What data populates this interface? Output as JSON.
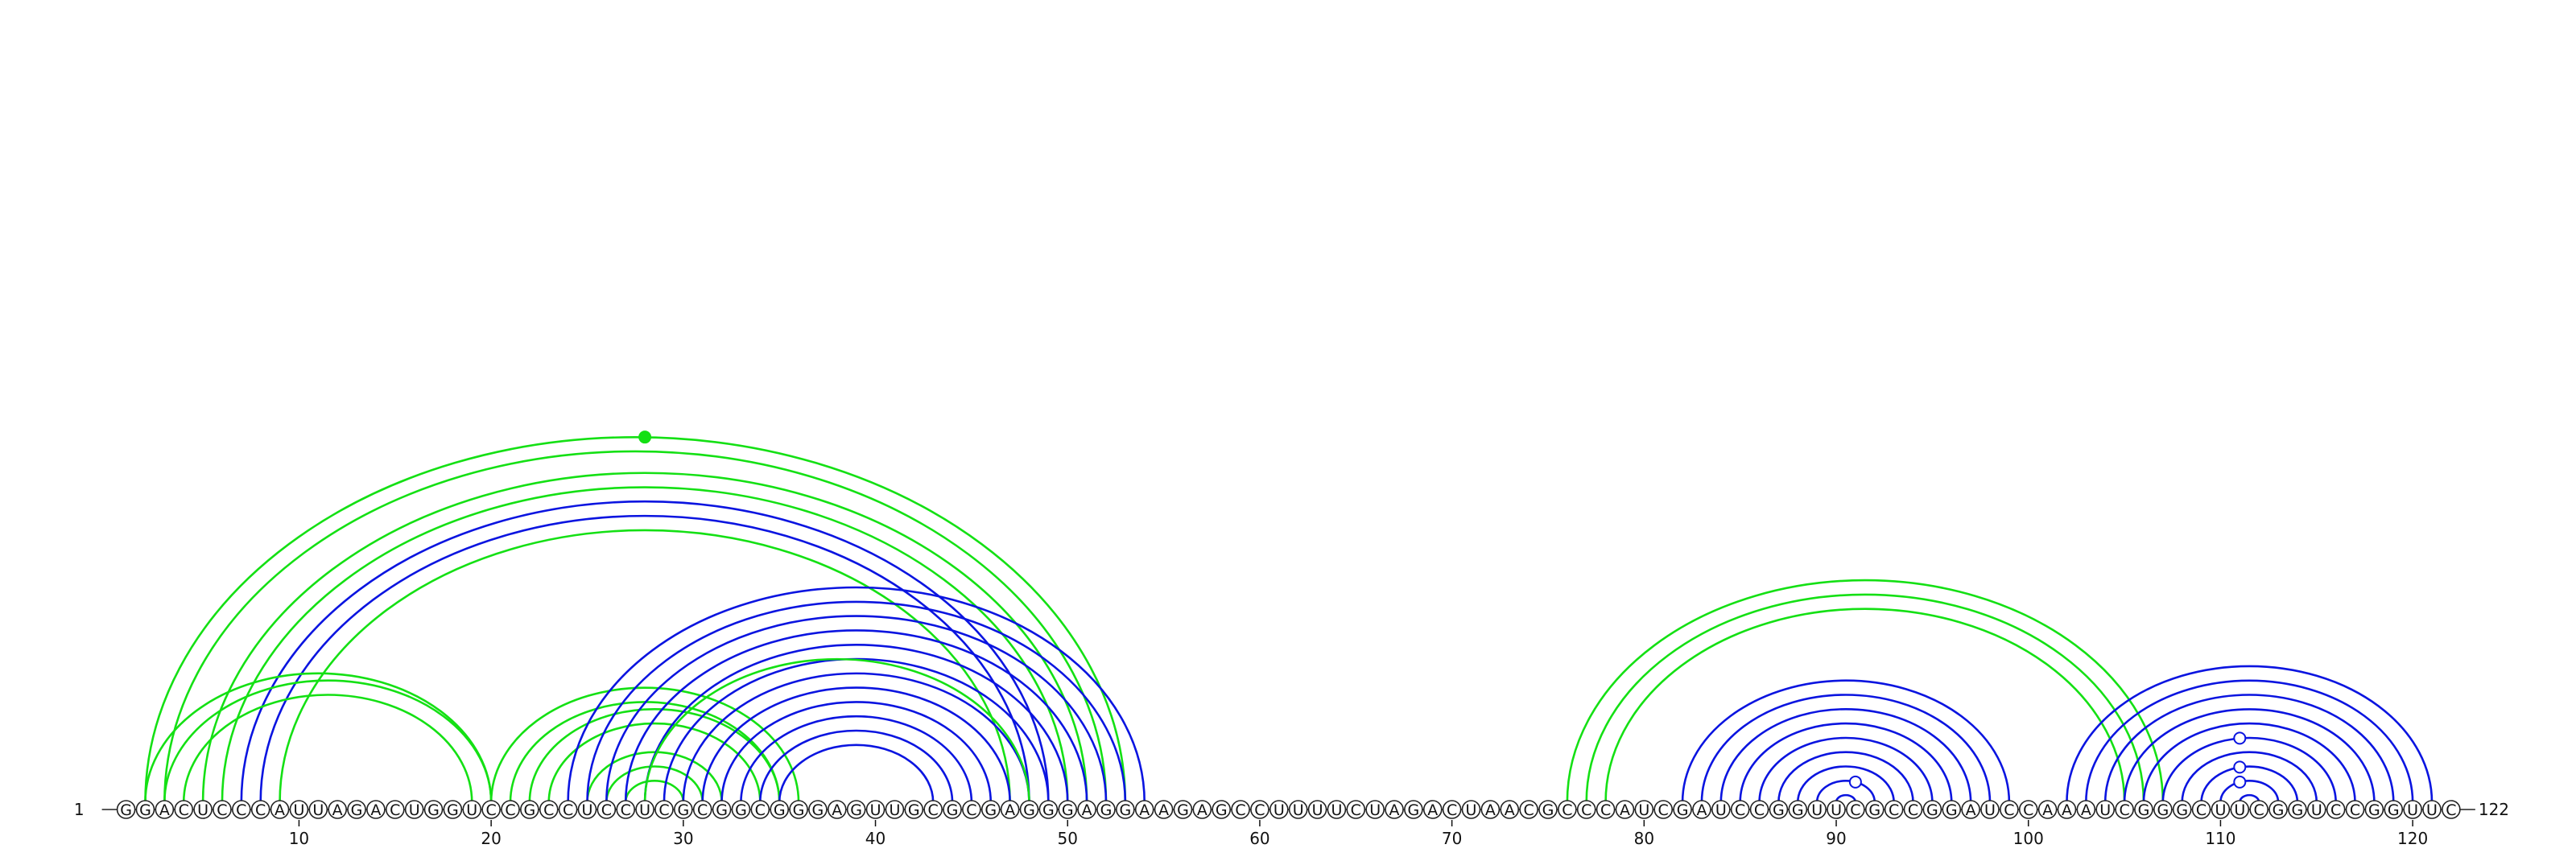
{
  "diagram": {
    "type": "arc-diagram",
    "sequence": "GGACUCCCAUUAGACUGGUCCGCCUCCUCGCGGCGGGAGUUGCGCGAGGGAGGAAGAGCCUUUUCUAGACUAACGCCCAUCGAUCCGGUUCGCCGGAUCCAAAUCGGGCUUCGGUCCGGUUC",
    "start_index": 1,
    "end_index": 122,
    "start_label": "1",
    "end_label": "122",
    "axis_ticks": [
      "10",
      "20",
      "30",
      "40",
      "50",
      "60",
      "70",
      "80",
      "90",
      "100",
      "110",
      "120"
    ],
    "colors": {
      "blue": "#0a14e0",
      "green": "#14e014",
      "nucleotide_stroke": "#222222"
    },
    "arc_groups": [
      {
        "color": "green",
        "pairs": [
          [
            2,
            53
          ],
          [
            3,
            52
          ],
          [
            5,
            51
          ],
          [
            6,
            50
          ]
        ]
      },
      {
        "color": "blue",
        "pairs": [
          [
            7,
            49
          ],
          [
            8,
            48
          ]
        ]
      },
      {
        "color": "green",
        "pairs": [
          [
            9,
            47
          ]
        ]
      },
      {
        "color": "green",
        "pairs": [
          [
            2,
            20
          ],
          [
            3,
            20
          ],
          [
            4,
            19
          ]
        ]
      },
      {
        "color": "green",
        "pairs": [
          [
            20,
            36
          ],
          [
            21,
            35
          ],
          [
            22,
            35
          ],
          [
            23,
            34
          ],
          [
            25,
            32
          ],
          [
            26,
            31
          ],
          [
            27,
            30
          ]
        ]
      },
      {
        "color": "blue",
        "pairs": [
          [
            24,
            54
          ],
          [
            25,
            53
          ],
          [
            26,
            52
          ],
          [
            27,
            51
          ],
          [
            28,
            50
          ],
          [
            29,
            49
          ],
          [
            30,
            48
          ],
          [
            31,
            47
          ],
          [
            32,
            46
          ],
          [
            33,
            45
          ],
          [
            34,
            44
          ],
          [
            35,
            43
          ]
        ]
      },
      {
        "color": "green",
        "pairs": [
          [
            28,
            48
          ]
        ]
      },
      {
        "color": "green",
        "pairs": [
          [
            76,
            107
          ],
          [
            77,
            106
          ],
          [
            78,
            105
          ]
        ]
      },
      {
        "color": "blue",
        "pairs": [
          [
            82,
            99
          ],
          [
            83,
            98
          ],
          [
            84,
            97
          ],
          [
            85,
            96
          ],
          [
            86,
            95
          ],
          [
            87,
            94
          ],
          [
            88,
            93
          ],
          [
            89,
            92
          ],
          [
            90,
            91
          ]
        ]
      },
      {
        "color": "blue",
        "pairs": [
          [
            102,
            121
          ],
          [
            103,
            120
          ],
          [
            104,
            119
          ],
          [
            105,
            118
          ],
          [
            106,
            117
          ],
          [
            107,
            116
          ],
          [
            108,
            115
          ],
          [
            109,
            114
          ],
          [
            110,
            113
          ],
          [
            111,
            112
          ]
        ]
      }
    ],
    "markers": [
      {
        "index": 28,
        "color": "green",
        "style": "filled",
        "on": "arc",
        "arc": [
          2,
          53
        ]
      },
      {
        "index": 91,
        "color": "blue",
        "style": "open",
        "on": "arc",
        "arc": [
          89,
          92
        ]
      },
      {
        "index": 111,
        "color": "blue",
        "style": "open",
        "on": "arc",
        "arc": [
          107,
          116
        ]
      },
      {
        "index": 111,
        "color": "blue",
        "style": "open",
        "on": "arc",
        "arc": [
          109,
          114
        ]
      },
      {
        "index": 111,
        "color": "blue",
        "style": "open",
        "on": "arc",
        "arc": [
          110,
          113
        ]
      }
    ]
  }
}
